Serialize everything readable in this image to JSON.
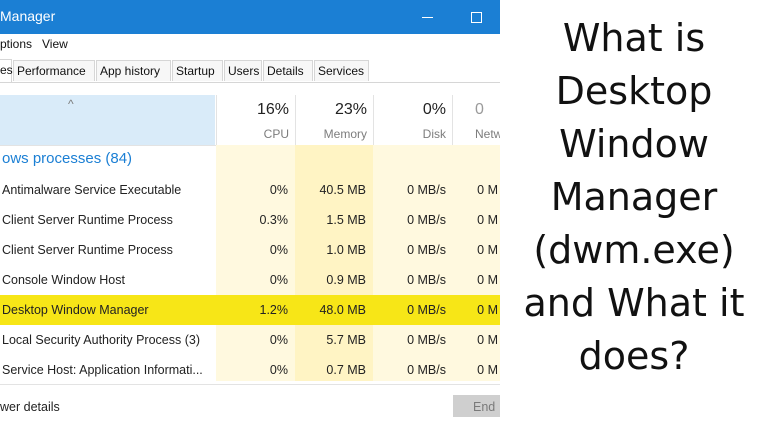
{
  "window": {
    "title": "Manager"
  },
  "menu": [
    "ptions",
    "View"
  ],
  "tabs": [
    "es",
    "Performance",
    "App history",
    "Startup",
    "Users",
    "Details",
    "Services"
  ],
  "columns": {
    "cpu": {
      "percent": "16%",
      "label": "CPU"
    },
    "memory": {
      "percent": "23%",
      "label": "Memory"
    },
    "disk": {
      "percent": "0%",
      "label": "Disk"
    },
    "network": {
      "percent": "0",
      "label": "Netw"
    }
  },
  "group": "ows processes (84)",
  "processes": [
    {
      "name": "Antimalware Service Executable",
      "cpu": "0%",
      "memory": "40.5 MB",
      "disk": "0 MB/s",
      "network": "0 M"
    },
    {
      "name": "Client Server Runtime Process",
      "cpu": "0.3%",
      "memory": "1.5 MB",
      "disk": "0 MB/s",
      "network": "0 M"
    },
    {
      "name": "Client Server Runtime Process",
      "cpu": "0%",
      "memory": "1.0 MB",
      "disk": "0 MB/s",
      "network": "0 M"
    },
    {
      "name": "Console Window Host",
      "cpu": "0%",
      "memory": "0.9 MB",
      "disk": "0 MB/s",
      "network": "0 M"
    },
    {
      "name": "Desktop Window Manager",
      "cpu": "1.2%",
      "memory": "48.0 MB",
      "disk": "0 MB/s",
      "network": "0 M"
    },
    {
      "name": "Local Security Authority Process (3)",
      "cpu": "0%",
      "memory": "5.7 MB",
      "disk": "0 MB/s",
      "network": "0 M"
    },
    {
      "name": "Service Host: Application Informati...",
      "cpu": "0%",
      "memory": "0.7 MB",
      "disk": "0 MB/s",
      "network": "0 M"
    }
  ],
  "footer": {
    "details": "wer details",
    "end_task": "End"
  },
  "headline": [
    "What is",
    "Desktop",
    "Window",
    "Manager",
    "(dwm.exe)",
    "and What it",
    "does?"
  ],
  "colors": {
    "titlebar": "#1b7fd4",
    "highlight": "#f7e617",
    "heat_cpu": "#fff9df",
    "heat_memory": "#fff4c4"
  },
  "icons": {
    "minimize": "minimize-icon",
    "maximize": "maximize-icon",
    "sort": "sort-up-arrow-icon"
  }
}
